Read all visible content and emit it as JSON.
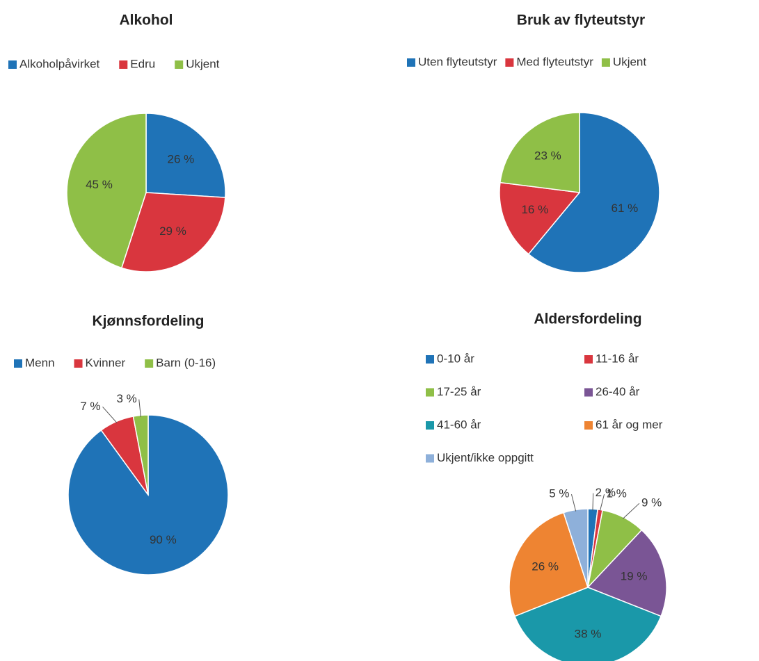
{
  "chart_data": [
    {
      "type": "pie",
      "title": "Alkohol",
      "categories": [
        "Alkoholpåvirket",
        "Edru",
        "Ukjent"
      ],
      "values": [
        26,
        29,
        45
      ],
      "value_labels": [
        "26 %",
        "29 %",
        "45 %"
      ],
      "colors": [
        "#1f73b7",
        "#d9363e",
        "#8fbf47"
      ]
    },
    {
      "type": "pie",
      "title": "Bruk av flyteutstyr",
      "categories": [
        "Uten flyteutstyr",
        "Med flyteutstyr",
        "Ukjent"
      ],
      "values": [
        61,
        16,
        23
      ],
      "value_labels": [
        "61 %",
        "16 %",
        "23 %"
      ],
      "colors": [
        "#1f73b7",
        "#d9363e",
        "#8fbf47"
      ]
    },
    {
      "type": "pie",
      "title": "Kjønnsfordeling",
      "categories": [
        "Menn",
        "Kvinner",
        "Barn (0-16)"
      ],
      "values": [
        90,
        7,
        3
      ],
      "value_labels": [
        "90 %",
        "7 %",
        "3 %"
      ],
      "colors": [
        "#1f73b7",
        "#d9363e",
        "#8fbf47"
      ]
    },
    {
      "type": "pie",
      "title": "Aldersfordeling",
      "categories": [
        "0-10 år",
        "11-16 år",
        "17-25 år",
        "26-40 år",
        "41-60 år",
        "61 år og mer",
        "Ukjent/ikke oppgitt"
      ],
      "values": [
        2,
        1,
        9,
        19,
        38,
        26,
        5
      ],
      "value_labels": [
        "2 %",
        "1 %",
        "9 %",
        "19 %",
        "38 %",
        "26 %",
        "5 %"
      ],
      "colors": [
        "#1f73b7",
        "#d9363e",
        "#8fbf47",
        "#7a5595",
        "#1a98a9",
        "#ee8432",
        "#8eb0da"
      ]
    }
  ]
}
